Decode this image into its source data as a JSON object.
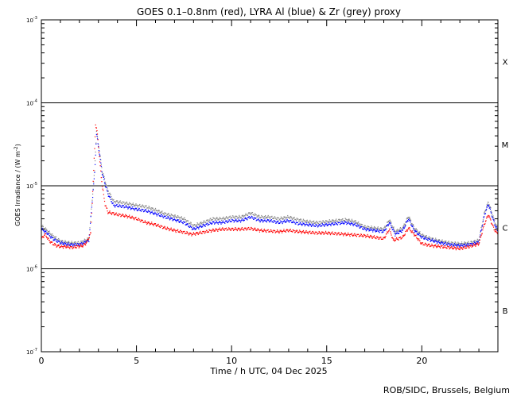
{
  "chart_data": {
    "type": "scatter",
    "title": "GOES 0.1–0.8nm (red), LYRA Al (blue) & Zr (grey) proxy",
    "xlabel": "Time / h UTC, 04 Dec 2025",
    "ylabel": "GOES Irradiance / (W m",
    "ylabel_sup": "-2",
    "ylabel_close": ")",
    "footer": "ROB/SIDC, Brussels, Belgium",
    "xlim": [
      0,
      24
    ],
    "ylim": [
      1e-07,
      0.001
    ],
    "yscale": "log",
    "x_ticks": [
      {
        "value": 0,
        "label": "0"
      },
      {
        "value": 5,
        "label": "5"
      },
      {
        "value": 10,
        "label": "10"
      },
      {
        "value": 15,
        "label": "15"
      },
      {
        "value": 20,
        "label": "20"
      }
    ],
    "y_ticks": [
      {
        "exp": -7,
        "base": "10",
        "sup": "-7"
      },
      {
        "exp": -6,
        "base": "10",
        "sup": "-6"
      },
      {
        "exp": -5,
        "base": "10",
        "sup": "-5"
      },
      {
        "exp": -4,
        "base": "10",
        "sup": "-4"
      },
      {
        "exp": -3,
        "base": "10",
        "sup": "-3"
      }
    ],
    "flare_classes": [
      {
        "label": "B",
        "log_center": -6.5
      },
      {
        "label": "C",
        "log_center": -5.5
      },
      {
        "label": "M",
        "log_center": -4.5
      },
      {
        "label": "X",
        "log_center": -3.5
      }
    ],
    "class_lines": [
      -6,
      -5,
      -4
    ],
    "series": [
      {
        "name": "GOES 0.1–0.8nm",
        "color": "#ff0000",
        "points": [
          [
            0,
            2.3e-06
          ],
          [
            0.2,
            2.6e-06
          ],
          [
            0.4,
            2.2e-06
          ],
          [
            0.6,
            2e-06
          ],
          [
            0.8,
            1.9e-06
          ],
          [
            1.0,
            1.85e-06
          ],
          [
            1.3,
            1.85e-06
          ],
          [
            1.6,
            1.8e-06
          ],
          [
            1.9,
            1.85e-06
          ],
          [
            2.2,
            1.9e-06
          ],
          [
            2.4,
            2.1e-06
          ],
          [
            2.6,
            2.7e-06
          ],
          [
            2.75,
            1.5e-05
          ],
          [
            2.85,
            5.5e-05
          ],
          [
            2.95,
            4.2e-05
          ],
          [
            3.05,
            2.2e-05
          ],
          [
            3.2,
            1e-05
          ],
          [
            3.35,
            6e-06
          ],
          [
            3.5,
            4.8e-06
          ],
          [
            4.0,
            4.5e-06
          ],
          [
            4.5,
            4.3e-06
          ],
          [
            5.0,
            4e-06
          ],
          [
            5.5,
            3.6e-06
          ],
          [
            6.0,
            3.4e-06
          ],
          [
            6.5,
            3.1e-06
          ],
          [
            7.0,
            2.9e-06
          ],
          [
            7.5,
            2.75e-06
          ],
          [
            7.9,
            2.6e-06
          ],
          [
            8.5,
            2.75e-06
          ],
          [
            9.0,
            2.9e-06
          ],
          [
            9.5,
            3e-06
          ],
          [
            10.0,
            3e-06
          ],
          [
            10.5,
            3e-06
          ],
          [
            11.0,
            3.05e-06
          ],
          [
            11.5,
            2.9e-06
          ],
          [
            12.0,
            2.85e-06
          ],
          [
            12.5,
            2.8e-06
          ],
          [
            13.0,
            2.9e-06
          ],
          [
            13.5,
            2.8e-06
          ],
          [
            14.0,
            2.75e-06
          ],
          [
            14.5,
            2.7e-06
          ],
          [
            15.0,
            2.7e-06
          ],
          [
            15.5,
            2.65e-06
          ],
          [
            16.0,
            2.6e-06
          ],
          [
            16.5,
            2.55e-06
          ],
          [
            17.0,
            2.5e-06
          ],
          [
            17.5,
            2.4e-06
          ],
          [
            18.0,
            2.3e-06
          ],
          [
            18.3,
            3e-06
          ],
          [
            18.5,
            2.2e-06
          ],
          [
            19.0,
            2.4e-06
          ],
          [
            19.3,
            3.1e-06
          ],
          [
            19.6,
            2.6e-06
          ],
          [
            20.0,
            2e-06
          ],
          [
            20.5,
            1.9e-06
          ],
          [
            21.0,
            1.85e-06
          ],
          [
            21.5,
            1.8e-06
          ],
          [
            22.0,
            1.75e-06
          ],
          [
            22.5,
            1.85e-06
          ],
          [
            23.0,
            2e-06
          ],
          [
            23.3,
            3.5e-06
          ],
          [
            23.5,
            4.5e-06
          ],
          [
            23.8,
            3e-06
          ],
          [
            24.0,
            2.6e-06
          ]
        ]
      },
      {
        "name": "LYRA Al",
        "color": "#0000ff",
        "points": [
          [
            0,
            3e-06
          ],
          [
            0.3,
            2.7e-06
          ],
          [
            0.6,
            2.3e-06
          ],
          [
            1.0,
            2.05e-06
          ],
          [
            1.5,
            1.95e-06
          ],
          [
            2.0,
            1.95e-06
          ],
          [
            2.5,
            2.2e-06
          ],
          [
            2.8,
            1.4e-05
          ],
          [
            2.9,
            4.2e-05
          ],
          [
            3.0,
            3e-05
          ],
          [
            3.2,
            1.4e-05
          ],
          [
            3.5,
            8e-06
          ],
          [
            3.8,
            5.8e-06
          ],
          [
            4.4,
            5.6e-06
          ],
          [
            5.0,
            5.2e-06
          ],
          [
            5.5,
            5e-06
          ],
          [
            6.0,
            4.6e-06
          ],
          [
            6.5,
            4.2e-06
          ],
          [
            7.0,
            3.9e-06
          ],
          [
            7.5,
            3.6e-06
          ],
          [
            8.0,
            3e-06
          ],
          [
            8.5,
            3.3e-06
          ],
          [
            9.0,
            3.6e-06
          ],
          [
            9.5,
            3.6e-06
          ],
          [
            10.0,
            3.8e-06
          ],
          [
            10.5,
            3.8e-06
          ],
          [
            11.0,
            4.2e-06
          ],
          [
            11.5,
            3.8e-06
          ],
          [
            12.0,
            3.8e-06
          ],
          [
            12.5,
            3.6e-06
          ],
          [
            13.0,
            3.8e-06
          ],
          [
            13.5,
            3.5e-06
          ],
          [
            14.0,
            3.4e-06
          ],
          [
            14.5,
            3.3e-06
          ],
          [
            15.0,
            3.4e-06
          ],
          [
            15.5,
            3.5e-06
          ],
          [
            16.0,
            3.6e-06
          ],
          [
            16.5,
            3.4e-06
          ],
          [
            17.0,
            3e-06
          ],
          [
            17.5,
            2.9e-06
          ],
          [
            18.0,
            2.8e-06
          ],
          [
            18.3,
            3.6e-06
          ],
          [
            18.6,
            2.6e-06
          ],
          [
            19.0,
            2.9e-06
          ],
          [
            19.3,
            4e-06
          ],
          [
            19.6,
            2.9e-06
          ],
          [
            20.0,
            2.4e-06
          ],
          [
            20.5,
            2.2e-06
          ],
          [
            21.0,
            2.05e-06
          ],
          [
            21.5,
            1.95e-06
          ],
          [
            22.0,
            1.9e-06
          ],
          [
            22.5,
            1.95e-06
          ],
          [
            23.0,
            2.1e-06
          ],
          [
            23.3,
            4.5e-06
          ],
          [
            23.5,
            6e-06
          ],
          [
            23.8,
            3.6e-06
          ],
          [
            24.0,
            2.8e-06
          ]
        ]
      },
      {
        "name": "Zr",
        "color": "#888888",
        "points": [
          [
            0,
            3.3e-06
          ],
          [
            0.3,
            2.9e-06
          ],
          [
            0.6,
            2.5e-06
          ],
          [
            1.0,
            2.15e-06
          ],
          [
            1.5,
            2.05e-06
          ],
          [
            2.0,
            2.05e-06
          ],
          [
            2.5,
            2.3e-06
          ],
          [
            2.8,
            1.5e-05
          ],
          [
            2.9,
            4.5e-05
          ],
          [
            3.0,
            3.2e-05
          ],
          [
            3.2,
            1.5e-05
          ],
          [
            3.5,
            8.8e-06
          ],
          [
            3.8,
            6.5e-06
          ],
          [
            4.4,
            6.2e-06
          ],
          [
            5.0,
            5.8e-06
          ],
          [
            5.5,
            5.6e-06
          ],
          [
            6.0,
            5.1e-06
          ],
          [
            6.5,
            4.6e-06
          ],
          [
            7.0,
            4.3e-06
          ],
          [
            7.5,
            4e-06
          ],
          [
            8.0,
            3.3e-06
          ],
          [
            8.5,
            3.6e-06
          ],
          [
            9.0,
            4e-06
          ],
          [
            9.5,
            4e-06
          ],
          [
            10.0,
            4.2e-06
          ],
          [
            10.5,
            4.2e-06
          ],
          [
            11.0,
            4.7e-06
          ],
          [
            11.5,
            4.2e-06
          ],
          [
            12.0,
            4.2e-06
          ],
          [
            12.5,
            4e-06
          ],
          [
            13.0,
            4.2e-06
          ],
          [
            13.5,
            3.9e-06
          ],
          [
            14.0,
            3.7e-06
          ],
          [
            14.5,
            3.6e-06
          ],
          [
            15.0,
            3.7e-06
          ],
          [
            15.5,
            3.8e-06
          ],
          [
            16.0,
            3.9e-06
          ],
          [
            16.5,
            3.7e-06
          ],
          [
            17.0,
            3.2e-06
          ],
          [
            17.5,
            3.1e-06
          ],
          [
            18.0,
            3e-06
          ],
          [
            18.3,
            3.9e-06
          ],
          [
            18.6,
            2.8e-06
          ],
          [
            19.0,
            3.1e-06
          ],
          [
            19.3,
            4.3e-06
          ],
          [
            19.6,
            3.1e-06
          ],
          [
            20.0,
            2.55e-06
          ],
          [
            20.5,
            2.3e-06
          ],
          [
            21.0,
            2.15e-06
          ],
          [
            21.5,
            2.05e-06
          ],
          [
            22.0,
            2e-06
          ],
          [
            22.5,
            2.05e-06
          ],
          [
            23.0,
            2.2e-06
          ],
          [
            23.3,
            4.8e-06
          ],
          [
            23.5,
            6.4e-06
          ],
          [
            23.8,
            3.9e-06
          ],
          [
            24.0,
            3e-06
          ]
        ]
      }
    ]
  }
}
